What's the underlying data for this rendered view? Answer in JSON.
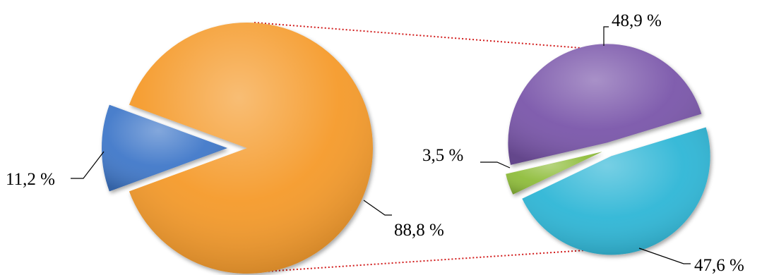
{
  "chart_data": [
    {
      "type": "pie",
      "series": [
        {
          "value": 11.2,
          "label": "11,2 %",
          "color": "#3f78c9",
          "exploded": true
        },
        {
          "value": 88.8,
          "label": "88,8 %",
          "color": "#f59a2a"
        }
      ]
    },
    {
      "type": "pie",
      "series": [
        {
          "value": 48.9,
          "label": "48,9 %",
          "color": "#7a56aa"
        },
        {
          "value": 47.6,
          "label": "47,6 %",
          "color": "#2fb6d6"
        },
        {
          "value": 3.5,
          "label": "3,5 %",
          "color": "#8fbd3a"
        }
      ]
    }
  ]
}
